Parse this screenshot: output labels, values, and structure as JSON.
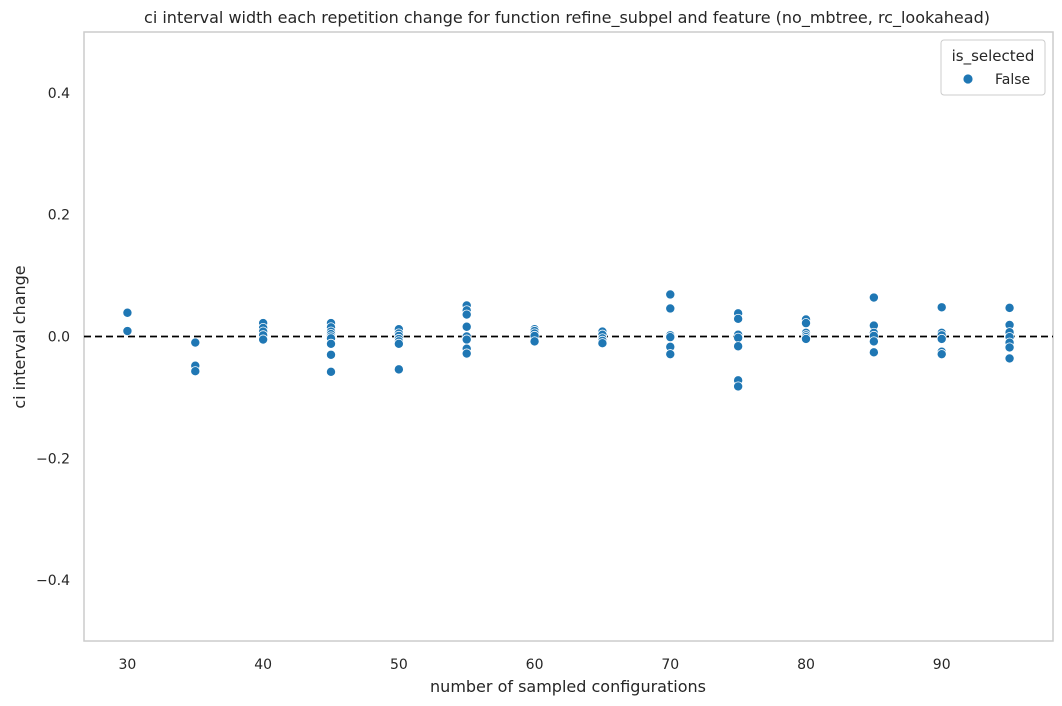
{
  "chart_data": {
    "type": "scatter",
    "title": "ci interval width each repetition change for function refine_subpel and feature (no_mbtree, rc_lookahead)",
    "xlabel": "number of sampled configurations",
    "ylabel": "ci interval change",
    "xlim": [
      26.8,
      98.2
    ],
    "ylim": [
      -0.5,
      0.5
    ],
    "xticks": [
      30,
      40,
      50,
      60,
      70,
      80,
      90
    ],
    "yticks": [
      -0.4,
      -0.2,
      0.0,
      0.2,
      0.4
    ],
    "ytick_labels": [
      "−0.4",
      "−0.2",
      "0.0",
      "0.2",
      "0.4"
    ],
    "grid": false,
    "reference_line": {
      "y": 0.0,
      "style": "dashed",
      "color": "#000000"
    },
    "legend": {
      "title": "is_selected",
      "position": "top-right"
    },
    "series": [
      {
        "name": "False",
        "color": "#1f77b4",
        "points": [
          [
            30,
            0.039
          ],
          [
            30,
            0.009
          ],
          [
            35,
            -0.01
          ],
          [
            35,
            -0.048
          ],
          [
            35,
            -0.057
          ],
          [
            40,
            0.022
          ],
          [
            40,
            0.014
          ],
          [
            40,
            0.008
          ],
          [
            40,
            0.002
          ],
          [
            40,
            -0.005
          ],
          [
            45,
            0.022
          ],
          [
            45,
            0.015
          ],
          [
            45,
            0.008
          ],
          [
            45,
            0.004
          ],
          [
            45,
            0.0
          ],
          [
            45,
            -0.003
          ],
          [
            45,
            -0.012
          ],
          [
            45,
            -0.03
          ],
          [
            45,
            -0.058
          ],
          [
            50,
            0.012
          ],
          [
            50,
            0.005
          ],
          [
            50,
            0.001
          ],
          [
            50,
            -0.004
          ],
          [
            50,
            -0.008
          ],
          [
            50,
            -0.012
          ],
          [
            50,
            -0.054
          ],
          [
            55,
            0.051
          ],
          [
            55,
            0.043
          ],
          [
            55,
            0.036
          ],
          [
            55,
            0.016
          ],
          [
            55,
            0.0
          ],
          [
            55,
            -0.005
          ],
          [
            55,
            -0.02
          ],
          [
            55,
            -0.028
          ],
          [
            60,
            0.012
          ],
          [
            60,
            0.009
          ],
          [
            60,
            0.005
          ],
          [
            60,
            0.001
          ],
          [
            60,
            -0.008
          ],
          [
            65,
            0.008
          ],
          [
            65,
            0.003
          ],
          [
            65,
            -0.003
          ],
          [
            65,
            -0.007
          ],
          [
            65,
            -0.011
          ],
          [
            70,
            0.069
          ],
          [
            70,
            0.046
          ],
          [
            70,
            0.002
          ],
          [
            70,
            -0.001
          ],
          [
            70,
            -0.017
          ],
          [
            70,
            -0.029
          ],
          [
            75,
            0.038
          ],
          [
            75,
            0.029
          ],
          [
            75,
            0.003
          ],
          [
            75,
            -0.002
          ],
          [
            75,
            -0.016
          ],
          [
            75,
            -0.072
          ],
          [
            75,
            -0.082
          ],
          [
            80,
            0.028
          ],
          [
            80,
            0.022
          ],
          [
            80,
            0.006
          ],
          [
            80,
            0.002
          ],
          [
            80,
            -0.001
          ],
          [
            80,
            -0.004
          ],
          [
            85,
            0.064
          ],
          [
            85,
            0.018
          ],
          [
            85,
            0.006
          ],
          [
            85,
            0.001
          ],
          [
            85,
            -0.008
          ],
          [
            85,
            -0.026
          ],
          [
            90,
            0.048
          ],
          [
            90,
            0.006
          ],
          [
            90,
            0.002
          ],
          [
            90,
            -0.004
          ],
          [
            90,
            -0.025
          ],
          [
            90,
            -0.029
          ],
          [
            95,
            0.047
          ],
          [
            95,
            0.019
          ],
          [
            95,
            0.007
          ],
          [
            95,
            -0.001
          ],
          [
            95,
            -0.01
          ],
          [
            95,
            -0.018
          ],
          [
            95,
            -0.036
          ]
        ]
      }
    ]
  }
}
